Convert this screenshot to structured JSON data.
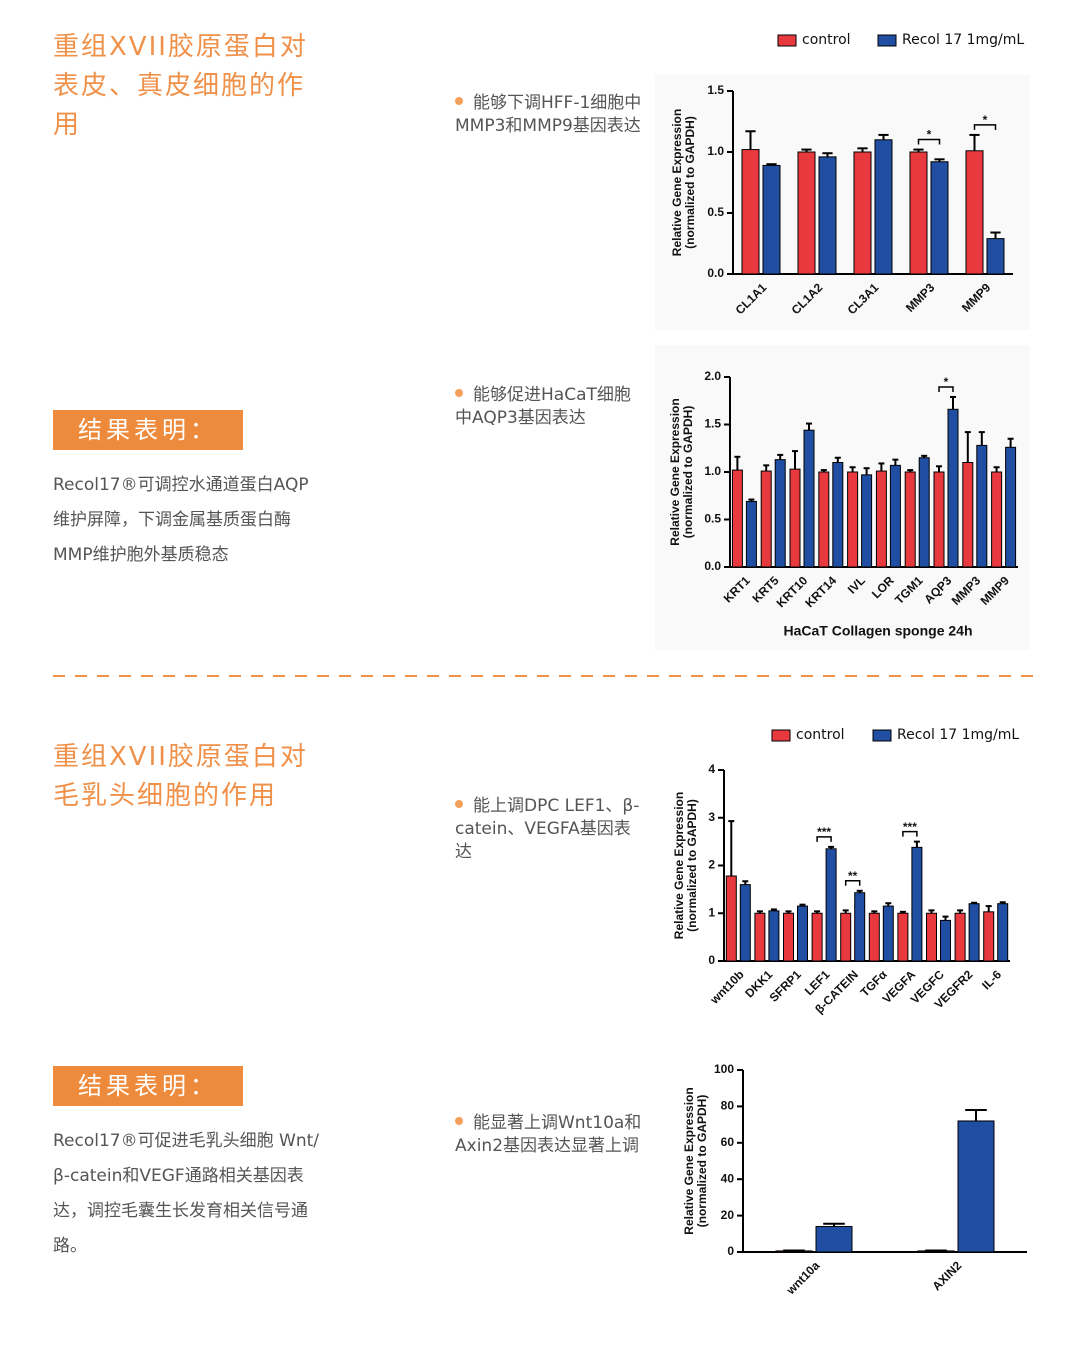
{
  "sections": [
    {
      "title": "重组XVII胶原蛋白对表皮、真皮细胞的作用",
      "conclusion_label": "结果表明：",
      "conclusion": "Recol17®可调控水通道蛋白AQP维护屏障，下调金属基质蛋白酶MMP维护胞外基质稳态",
      "bullets": [
        "能够下调HFF-1细胞中MMP3和MMP9基因表达",
        "能够促进HaCaT细胞中AQP3基因表达"
      ]
    },
    {
      "title": "重组XVII胶原蛋白对毛乳头细胞的作用",
      "conclusion_label": "结果表明：",
      "conclusion": "Recol17®可促进毛乳头细胞 Wnt/β-catein和VEGF通路相关基因表达，调控毛囊生长发育相关信号通路。",
      "bullets": [
        "能上调DPC LEF1、β-catein、VEGFA基因表达",
        "能显著上调Wnt10a和Axin2基因表达显著上调"
      ]
    }
  ],
  "chart_data": [
    {
      "type": "bar",
      "ylabel": [
        "Relative Gene Expression",
        "(normalized to GAPDH)"
      ],
      "categories": [
        "CL1A1",
        "CL1A2",
        "CL3A1",
        "MMP3",
        "MMP9"
      ],
      "series": [
        {
          "name": "control",
          "color": "#e8393f",
          "values": [
            1.02,
            1.0,
            1.0,
            1.0,
            1.01
          ],
          "errors": [
            0.15,
            0.02,
            0.03,
            0.02,
            0.13
          ]
        },
        {
          "name": "Recol 17 1mg/mL",
          "color": "#1f4ea3",
          "values": [
            0.89,
            0.96,
            1.1,
            0.92,
            0.29
          ],
          "errors": [
            0.01,
            0.03,
            0.04,
            0.02,
            0.05
          ]
        }
      ],
      "ylim": [
        0,
        1.5
      ],
      "yticks": [
        {
          "value": 0,
          "label": "0.0"
        },
        0.5,
        {
          "value": 1,
          "label": "1.0"
        },
        1.5
      ],
      "annotations": [
        {
          "text": "*",
          "category": "MMP3"
        },
        {
          "text": "*",
          "category": "MMP9"
        }
      ],
      "legend": true
    },
    {
      "type": "bar",
      "ylabel": [
        "Relative Gene Expression",
        "(normalized to GAPDH)"
      ],
      "xlabel": "HaCaT  Collagen sponge 24h",
      "categories": [
        "KRT1",
        "KRT5",
        "KRT10",
        "KRT14",
        "IVL",
        "LOR",
        "TGM1",
        "AQP3",
        "MMP3",
        "MMP9"
      ],
      "series": [
        {
          "color": "#e8393f",
          "values": [
            1.02,
            1.01,
            1.03,
            1.0,
            1.0,
            1.01,
            1.0,
            1.0,
            1.1,
            1.0
          ],
          "errors": [
            0.14,
            0.06,
            0.19,
            0.02,
            0.05,
            0.08,
            0.02,
            0.06,
            0.32,
            0.05
          ]
        },
        {
          "color": "#1f4ea3",
          "values": [
            0.69,
            1.13,
            1.44,
            1.1,
            0.97,
            1.07,
            1.15,
            1.66,
            1.28,
            1.26
          ],
          "errors": [
            0.02,
            0.05,
            0.07,
            0.05,
            0.07,
            0.06,
            0.02,
            0.13,
            0.14,
            0.09
          ]
        }
      ],
      "ylim": [
        0,
        2
      ],
      "yticks": [
        {
          "value": 0,
          "label": "0.0"
        },
        0.5,
        {
          "value": 1,
          "label": "1.0"
        },
        1.5,
        {
          "value": 2,
          "label": "2.0"
        }
      ],
      "annotations": [
        {
          "text": "*",
          "category": "AQP3"
        }
      ],
      "legend": false
    },
    {
      "type": "bar",
      "ylabel": [
        "Relative Gene Expression",
        "(normalized to GAPDH)"
      ],
      "categories": [
        "wnt10b",
        "DKK1",
        "SFRP1",
        "LEF1",
        "β-CATEIN",
        "TGFα",
        "VEGFA",
        "VEGFC",
        "VEGFR2",
        "IL-6"
      ],
      "series": [
        {
          "name": "control",
          "color": "#e8393f",
          "values": [
            1.78,
            1.0,
            1.0,
            1.0,
            1.0,
            1.0,
            1.0,
            1.0,
            1.0,
            1.03
          ],
          "errors": [
            1.15,
            0.04,
            0.04,
            0.04,
            0.06,
            0.04,
            0.03,
            0.06,
            0.06,
            0.12
          ]
        },
        {
          "name": "Recol 17 1mg/mL",
          "color": "#1f4ea3",
          "values": [
            1.6,
            1.05,
            1.15,
            2.35,
            1.43,
            1.15,
            2.38,
            0.85,
            1.2,
            1.2
          ],
          "errors": [
            0.07,
            0.03,
            0.03,
            0.04,
            0.04,
            0.06,
            0.12,
            0.08,
            0.02,
            0.03
          ]
        }
      ],
      "ylim": [
        0,
        4
      ],
      "yticks": [
        0,
        1,
        2,
        3,
        4
      ],
      "annotations": [
        {
          "text": "***",
          "category": "LEF1"
        },
        {
          "text": "**",
          "category": "β-CATEIN"
        },
        {
          "text": "***",
          "category": "VEGFA"
        }
      ],
      "legend": true
    },
    {
      "type": "bar",
      "ylabel": [
        "Relative Gene Expression",
        "(normalized to GAPDH)"
      ],
      "categories": [
        "wnt10a",
        "AXIN2"
      ],
      "series": [
        {
          "color": "#e8393f",
          "values": [
            0.6,
            0.6
          ],
          "errors": [
            0.2,
            0.2
          ]
        },
        {
          "color": "#1f4ea3",
          "values": [
            14,
            72
          ],
          "errors": [
            1.5,
            6
          ]
        }
      ],
      "ylim": [
        0,
        100
      ],
      "yticks": [
        0,
        20,
        40,
        60,
        80,
        100
      ],
      "legend": false
    }
  ]
}
